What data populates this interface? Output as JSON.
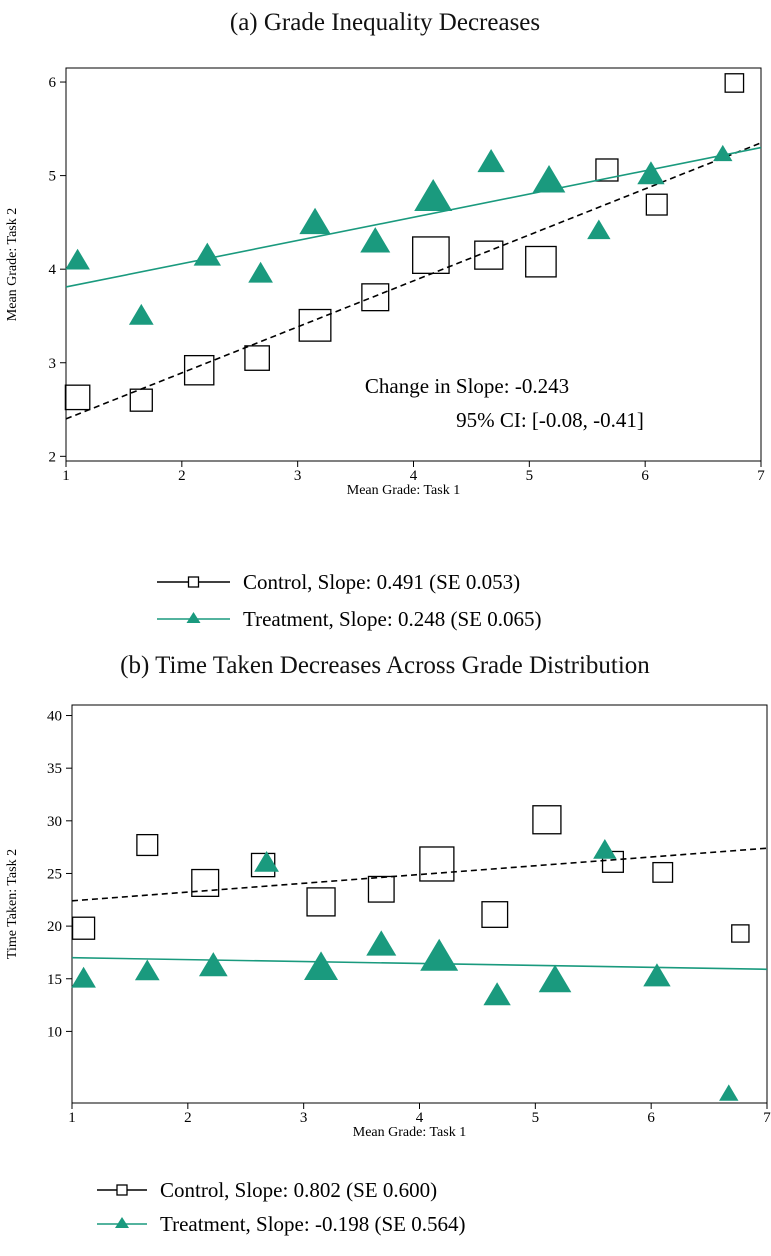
{
  "chart_data": [
    {
      "type": "scatter",
      "title": "(a) Grade Inequality Decreases",
      "xlabel": "Mean Grade: Task 1",
      "ylabel": "Mean Grade: Task 2",
      "xlim": [
        1,
        7
      ],
      "ylim": [
        1.95,
        6.15
      ],
      "xticks": [
        1,
        2,
        3,
        4,
        5,
        6,
        7
      ],
      "yticks": [
        2,
        3,
        4,
        5,
        6
      ],
      "grid": false,
      "annotation": {
        "line1": "Change in Slope:   -0.243",
        "line2": "95% CI: [-0.08, -0.41]"
      },
      "legend": [
        {
          "label": "Control, Slope: 0.491 (SE 0.053)"
        },
        {
          "label": "Treatment, Slope: 0.248 (SE 0.065)"
        }
      ],
      "series": [
        {
          "marker": "square",
          "color": "#000000",
          "points": [
            {
              "x": 1.1,
              "y": 2.63,
              "w": 1.2
            },
            {
              "x": 1.65,
              "y": 2.6,
              "w": 1.0
            },
            {
              "x": 2.15,
              "y": 2.92,
              "w": 1.6
            },
            {
              "x": 2.65,
              "y": 3.05,
              "w": 1.2
            },
            {
              "x": 3.15,
              "y": 3.4,
              "w": 1.8
            },
            {
              "x": 3.67,
              "y": 3.7,
              "w": 1.4
            },
            {
              "x": 4.15,
              "y": 4.15,
              "w": 2.2
            },
            {
              "x": 4.65,
              "y": 4.15,
              "w": 1.5
            },
            {
              "x": 5.1,
              "y": 4.08,
              "w": 1.7
            },
            {
              "x": 5.67,
              "y": 5.06,
              "w": 1.0
            },
            {
              "x": 6.1,
              "y": 4.69,
              "w": 0.9
            },
            {
              "x": 6.77,
              "y": 5.99,
              "w": 0.7
            }
          ],
          "fit": {
            "x0": 1,
            "y0": 2.4,
            "x1": 7,
            "y1": 5.35,
            "dashed": true
          }
        },
        {
          "marker": "triangle",
          "color": "#1a9a7e",
          "points": [
            {
              "x": 1.1,
              "y": 4.08,
              "w": 1.0
            },
            {
              "x": 1.65,
              "y": 3.49,
              "w": 1.0
            },
            {
              "x": 2.22,
              "y": 4.13,
              "w": 1.2
            },
            {
              "x": 2.68,
              "y": 3.94,
              "w": 1.0
            },
            {
              "x": 3.15,
              "y": 4.48,
              "w": 1.5
            },
            {
              "x": 3.67,
              "y": 4.28,
              "w": 1.4
            },
            {
              "x": 4.17,
              "y": 4.75,
              "w": 2.0
            },
            {
              "x": 4.67,
              "y": 5.13,
              "w": 1.2
            },
            {
              "x": 5.17,
              "y": 4.93,
              "w": 1.6
            },
            {
              "x": 5.6,
              "y": 4.4,
              "w": 0.9
            },
            {
              "x": 6.05,
              "y": 5.0,
              "w": 1.2
            },
            {
              "x": 6.67,
              "y": 5.22,
              "w": 0.6
            }
          ],
          "fit": {
            "x0": 1,
            "y0": 3.81,
            "x1": 7,
            "y1": 5.3,
            "dashed": false
          }
        }
      ]
    },
    {
      "type": "scatter",
      "title": "(b) Time Taken Decreases Across Grade Distribution",
      "xlabel": "Mean Grade: Task 1",
      "ylabel": "Time Taken: Task 2",
      "xlim": [
        1,
        7
      ],
      "ylim": [
        3.2,
        41
      ],
      "xticks": [
        1,
        2,
        3,
        4,
        5,
        6,
        7
      ],
      "yticks": [
        10,
        15,
        20,
        25,
        30,
        35,
        40
      ],
      "grid": false,
      "annotation": null,
      "legend": [
        {
          "label": "Control, Slope: 0.802 (SE 0.600)"
        },
        {
          "label": "Treatment, Slope: -0.198 (SE 0.564)"
        }
      ],
      "series": [
        {
          "marker": "square",
          "color": "#000000",
          "points": [
            {
              "x": 1.1,
              "y": 19.8,
              "w": 1.0
            },
            {
              "x": 1.65,
              "y": 27.7,
              "w": 0.9
            },
            {
              "x": 2.15,
              "y": 24.1,
              "w": 1.4
            },
            {
              "x": 2.65,
              "y": 25.8,
              "w": 1.1
            },
            {
              "x": 3.15,
              "y": 22.3,
              "w": 1.5
            },
            {
              "x": 3.67,
              "y": 23.5,
              "w": 1.3
            },
            {
              "x": 4.15,
              "y": 25.9,
              "w": 2.0
            },
            {
              "x": 4.65,
              "y": 21.1,
              "w": 1.3
            },
            {
              "x": 5.1,
              "y": 30.1,
              "w": 1.5
            },
            {
              "x": 5.67,
              "y": 26.1,
              "w": 0.9
            },
            {
              "x": 6.1,
              "y": 25.1,
              "w": 0.8
            },
            {
              "x": 6.77,
              "y": 19.3,
              "w": 0.6
            }
          ],
          "fit": {
            "x0": 1,
            "y0": 22.4,
            "x1": 7,
            "y1": 27.4,
            "dashed": true
          }
        },
        {
          "marker": "triangle",
          "color": "#1a9a7e",
          "points": [
            {
              "x": 1.1,
              "y": 14.9,
              "w": 1.0
            },
            {
              "x": 1.65,
              "y": 15.6,
              "w": 1.0
            },
            {
              "x": 2.22,
              "y": 16.1,
              "w": 1.3
            },
            {
              "x": 2.68,
              "y": 25.9,
              "w": 1.0
            },
            {
              "x": 3.15,
              "y": 15.9,
              "w": 1.7
            },
            {
              "x": 3.67,
              "y": 18.1,
              "w": 1.4
            },
            {
              "x": 4.17,
              "y": 16.9,
              "w": 2.0
            },
            {
              "x": 4.67,
              "y": 13.3,
              "w": 1.2
            },
            {
              "x": 5.17,
              "y": 14.7,
              "w": 1.6
            },
            {
              "x": 5.6,
              "y": 27.1,
              "w": 0.9
            },
            {
              "x": 6.05,
              "y": 15.1,
              "w": 1.2
            },
            {
              "x": 6.67,
              "y": 4.0,
              "w": 0.6
            }
          ],
          "fit": {
            "x0": 1,
            "y0": 17.0,
            "x1": 7,
            "y1": 15.9,
            "dashed": false
          }
        }
      ]
    }
  ]
}
